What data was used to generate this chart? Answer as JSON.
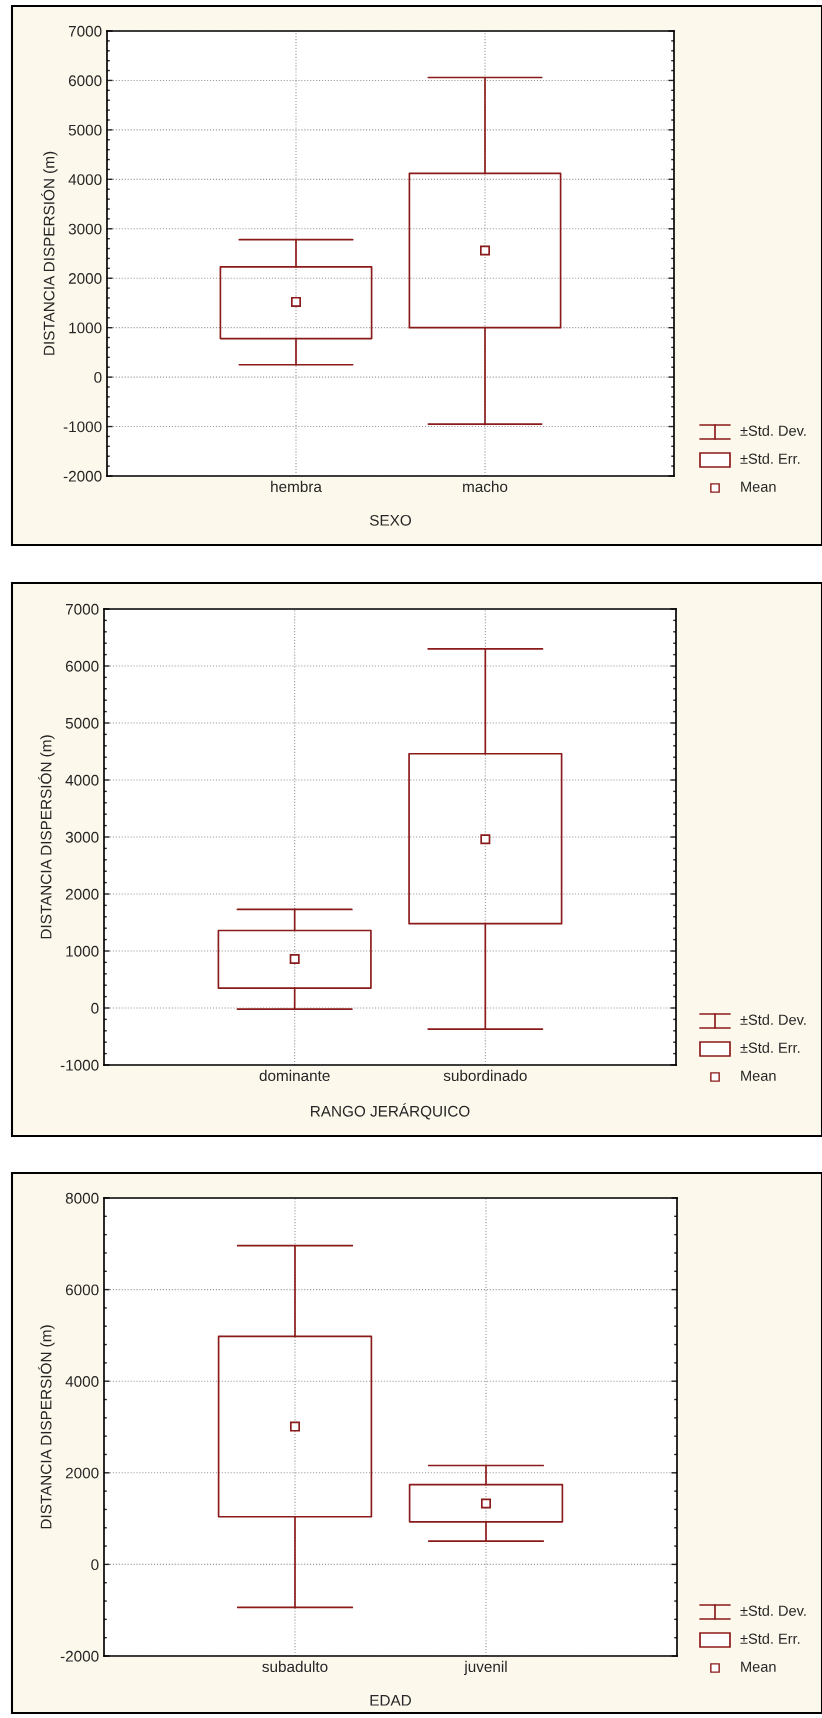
{
  "chart_data": [
    {
      "type": "box",
      "xlabel": "SEXO",
      "ylabel": "DISTANCIA DISPERSIÓN (m)",
      "categories": [
        "hembra",
        "macho"
      ],
      "ylim": [
        -2000,
        7000
      ],
      "yticks": [
        -2000,
        -1000,
        0,
        1000,
        2000,
        3000,
        4000,
        5000,
        6000,
        7000
      ],
      "grid": true,
      "marker": "square",
      "annotations": [
        "±Std. Dev.",
        "±Std. Err.",
        "Mean"
      ],
      "series": [
        {
          "color": "#8b1a1a",
          "boxes": [
            {
              "low": 250,
              "q1": 780,
              "q3": 2230,
              "high": 2780,
              "mean": 1520
            },
            {
              "low": -950,
              "q1": 1000,
              "q3": 4120,
              "high": 6060,
              "mean": 2560
            }
          ]
        }
      ]
    },
    {
      "type": "box",
      "xlabel": "RANGO JERÁRQUICO",
      "ylabel": "DISTANCIA DISPERSIÓN (m)",
      "categories": [
        "dominante",
        "subordinado"
      ],
      "ylim": [
        -1000,
        7000
      ],
      "yticks": [
        -1000,
        0,
        1000,
        2000,
        3000,
        4000,
        5000,
        6000,
        7000
      ],
      "grid": true,
      "marker": "square",
      "annotations": [
        "±Std. Dev.",
        "±Std. Err.",
        "Mean"
      ],
      "series": [
        {
          "color": "#8b1a1a",
          "boxes": [
            {
              "low": -20,
              "q1": 350,
              "q3": 1360,
              "high": 1730,
              "mean": 860
            },
            {
              "low": -370,
              "q1": 1480,
              "q3": 4460,
              "high": 6300,
              "mean": 2960
            }
          ]
        }
      ]
    },
    {
      "type": "box",
      "xlabel": "EDAD",
      "ylabel": "DISTANCIA DISPERSIÓN (m)",
      "categories": [
        "subadulto",
        "juvenil"
      ],
      "ylim": [
        -2000,
        8000
      ],
      "yticks": [
        -2000,
        0,
        2000,
        4000,
        6000,
        8000
      ],
      "grid": true,
      "marker": "square",
      "annotations": [
        "±Std. Dev.",
        "±Std. Err.",
        "Mean"
      ],
      "series": [
        {
          "color": "#8b1a1a",
          "boxes": [
            {
              "low": -940,
              "q1": 1040,
              "q3": 4980,
              "high": 6960,
              "mean": 3010
            },
            {
              "low": 510,
              "q1": 930,
              "q3": 1740,
              "high": 2160,
              "mean": 1330
            }
          ]
        }
      ]
    }
  ]
}
